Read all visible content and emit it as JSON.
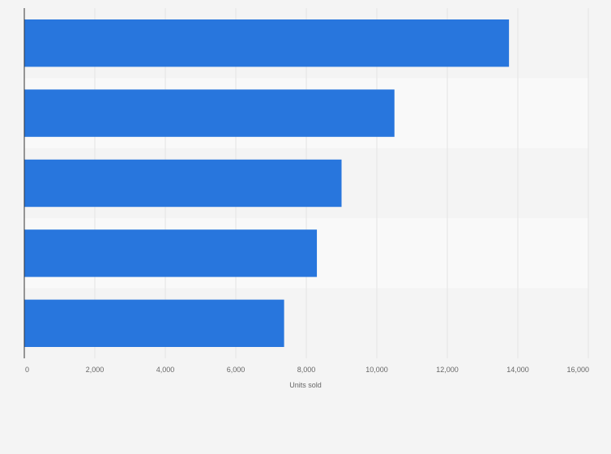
{
  "chart_data": {
    "type": "bar",
    "orientation": "horizontal",
    "title": "",
    "xlabel": "Units sold",
    "ylabel": "",
    "categories": [
      "",
      "",
      "",
      "",
      ""
    ],
    "values": [
      13750,
      10500,
      9000,
      8300,
      7370
    ],
    "xlim": [
      0,
      16000
    ],
    "x_ticks": [
      0,
      2000,
      4000,
      6000,
      8000,
      10000,
      12000,
      14000,
      16000
    ],
    "x_tick_labels": [
      "0",
      "2,000",
      "4,000",
      "6,000",
      "8,000",
      "10,000",
      "12,000",
      "14,000",
      "16,000"
    ],
    "grid": true,
    "legend": "none",
    "colors": {
      "bar": "#2876dd",
      "background": "#f4f4f4",
      "band_light": "#f9f9f9",
      "grid": "#e3e3e3",
      "axis": "#333333",
      "tick_text": "#666666"
    }
  }
}
